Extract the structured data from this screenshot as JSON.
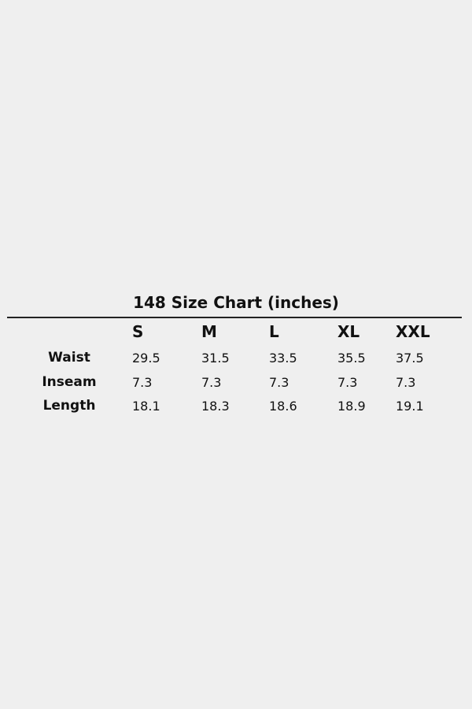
{
  "title": "148 Size Chart (inches)",
  "sizes": [
    "S",
    "M",
    "L",
    "XL",
    "XXL"
  ],
  "rows": [
    {
      "label": "Waist",
      "values": [
        "29.5",
        "31.5",
        "33.5",
        "35.5",
        "37.5"
      ]
    },
    {
      "label": "Inseam",
      "values": [
        "7.3",
        "7.3",
        "7.3",
        "7.3",
        "7.3"
      ]
    },
    {
      "label": "Length",
      "values": [
        "18.1",
        "18.3",
        "18.6",
        "18.9",
        "19.1"
      ]
    }
  ],
  "colors": {
    "background": "#efefef",
    "text": "#111111"
  }
}
